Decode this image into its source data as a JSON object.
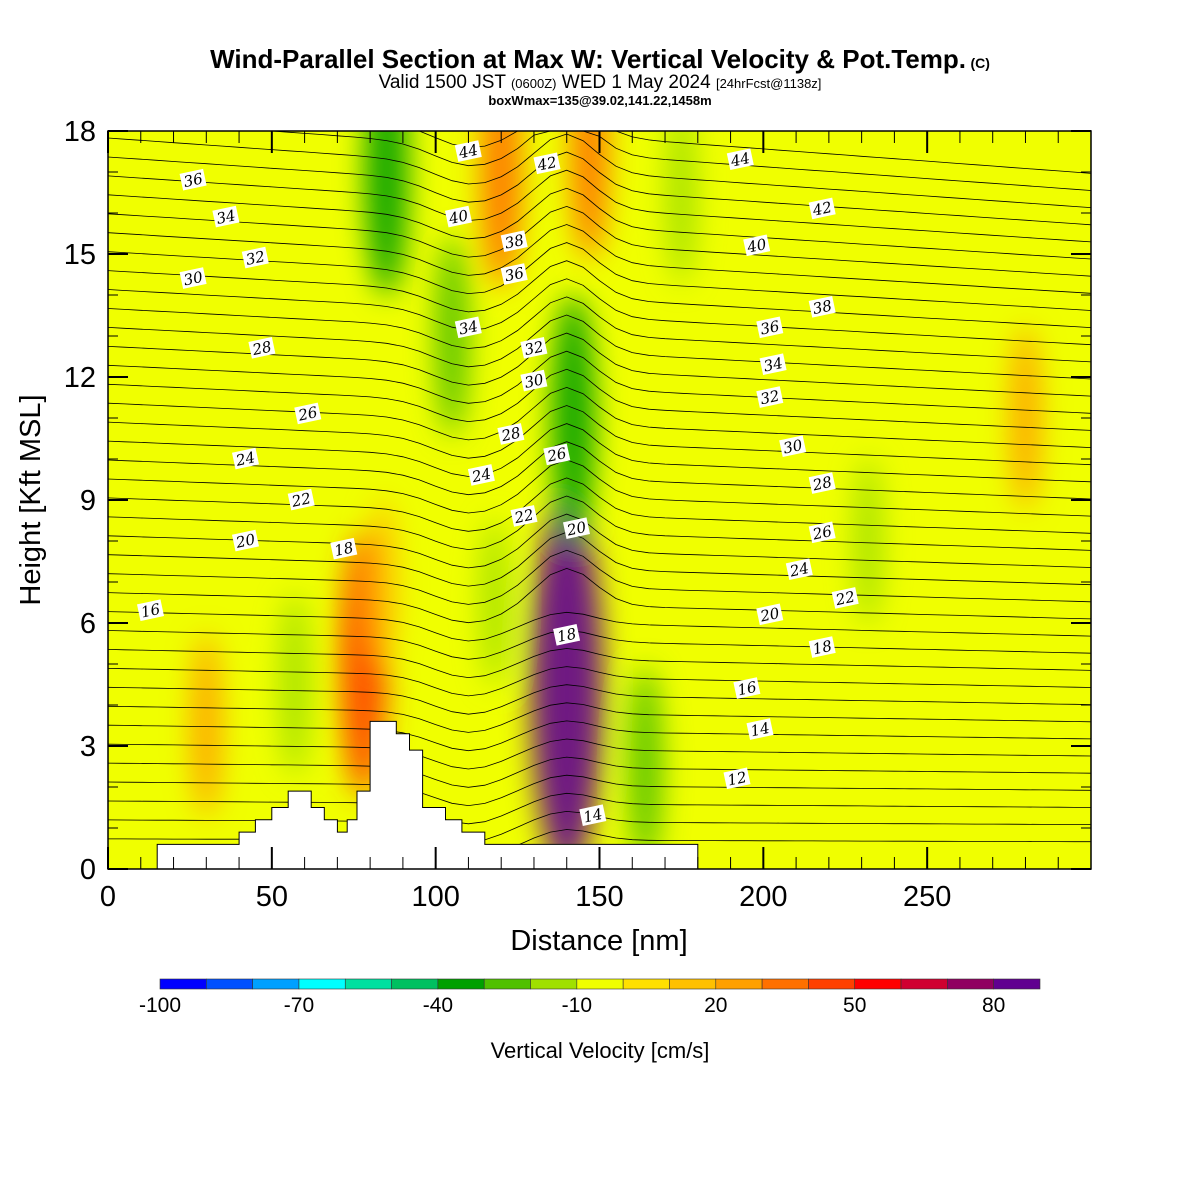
{
  "chart_data": {
    "type": "heatmap",
    "title_main": "Wind-Parallel Section at Max W: Vertical Velocity & Pot.Temp.",
    "title_mark": "(C)",
    "subtitle_a": "Valid 1500 JST",
    "subtitle_b": "(0600Z)",
    "subtitle_c": "WED 1 May 2024",
    "subtitle_d": "[24hrFcst@1138z]",
    "box_line": "boxWmax=135@39.02,141.22,1458m",
    "xlabel": "Distance [nm]",
    "ylabel": "Height [Kft MSL]",
    "xlim": [
      0,
      300
    ],
    "ylim": [
      0,
      18
    ],
    "x_ticks": [
      "0",
      "50",
      "100",
      "150",
      "200",
      "250"
    ],
    "x_tick_values": [
      0,
      50,
      100,
      150,
      200,
      250
    ],
    "y_ticks": [
      "0",
      "3",
      "6",
      "9",
      "12",
      "15",
      "18"
    ],
    "y_tick_values": [
      0,
      3,
      6,
      9,
      12,
      15,
      18
    ],
    "colorbar": {
      "label": "Vertical Velocity [cm/s]",
      "min": -100,
      "max": 90,
      "tick_labels": [
        "-100",
        "-70",
        "-40",
        "-10",
        "20",
        "50",
        "80"
      ],
      "tick_values": [
        -100,
        -70,
        -40,
        -10,
        20,
        50,
        80
      ],
      "colors": [
        "#0000ff",
        "#0050ff",
        "#00a0ff",
        "#00ffff",
        "#00e0a0",
        "#00c060",
        "#00a000",
        "#50c000",
        "#a0e000",
        "#f0ff00",
        "#ffe000",
        "#ffc000",
        "#ffa000",
        "#ff7000",
        "#ff4000",
        "#ff0000",
        "#d00030",
        "#900060",
        "#600090"
      ]
    },
    "terrain_profile": [
      [
        0,
        0
      ],
      [
        15,
        0
      ],
      [
        15,
        0.6
      ],
      [
        40,
        0.6
      ],
      [
        40,
        0.9
      ],
      [
        45,
        0.9
      ],
      [
        45,
        1.2
      ],
      [
        50,
        1.2
      ],
      [
        50,
        1.5
      ],
      [
        55,
        1.5
      ],
      [
        55,
        1.9
      ],
      [
        62,
        1.9
      ],
      [
        62,
        1.5
      ],
      [
        66,
        1.5
      ],
      [
        66,
        1.2
      ],
      [
        70,
        1.2
      ],
      [
        70,
        0.9
      ],
      [
        73,
        0.9
      ],
      [
        73,
        1.2
      ],
      [
        76,
        1.2
      ],
      [
        76,
        1.9
      ],
      [
        80,
        1.9
      ],
      [
        80,
        3.6
      ],
      [
        88,
        3.6
      ],
      [
        88,
        3.3
      ],
      [
        92,
        3.3
      ],
      [
        92,
        2.9
      ],
      [
        96,
        2.9
      ],
      [
        96,
        1.5
      ],
      [
        103,
        1.5
      ],
      [
        103,
        1.2
      ],
      [
        108,
        1.2
      ],
      [
        108,
        0.9
      ],
      [
        115,
        0.9
      ],
      [
        115,
        0.6
      ],
      [
        180,
        0.6
      ],
      [
        180,
        0
      ],
      [
        300,
        0
      ]
    ],
    "w_features": [
      {
        "x": 140,
        "y": 4.5,
        "value": 80
      },
      {
        "x": 78,
        "y": 5.0,
        "value": 45
      },
      {
        "x": 120,
        "y": 17.0,
        "value": 35
      },
      {
        "x": 147,
        "y": 17.5,
        "value": 30
      },
      {
        "x": 30,
        "y": 3.5,
        "value": 20
      },
      {
        "x": 84,
        "y": 7.0,
        "value": 15
      },
      {
        "x": 280,
        "y": 11.0,
        "value": 20
      },
      {
        "x": 85,
        "y": 17.0,
        "value": -40
      },
      {
        "x": 142,
        "y": 11.0,
        "value": -40
      },
      {
        "x": 105,
        "y": 13.0,
        "value": -25
      },
      {
        "x": 175,
        "y": 16.5,
        "value": -20
      },
      {
        "x": 57,
        "y": 4.5,
        "value": -20
      },
      {
        "x": 164,
        "y": 2.5,
        "value": -25
      },
      {
        "x": 118,
        "y": 6.5,
        "value": -15
      },
      {
        "x": 232,
        "y": 8.0,
        "value": -15
      }
    ],
    "theta_contour_labels": [
      {
        "value": "44",
        "x": 110,
        "y": 17.5
      },
      {
        "value": "42",
        "x": 134,
        "y": 17.2
      },
      {
        "value": "44",
        "x": 193,
        "y": 17.3
      },
      {
        "value": "36",
        "x": 26,
        "y": 16.8
      },
      {
        "value": "42",
        "x": 218,
        "y": 16.1
      },
      {
        "value": "40",
        "x": 107,
        "y": 15.9
      },
      {
        "value": "34",
        "x": 36,
        "y": 15.9
      },
      {
        "value": "38",
        "x": 124,
        "y": 15.3
      },
      {
        "value": "40",
        "x": 198,
        "y": 15.2
      },
      {
        "value": "32",
        "x": 45,
        "y": 14.9
      },
      {
        "value": "36",
        "x": 124,
        "y": 14.5
      },
      {
        "value": "30",
        "x": 26,
        "y": 14.4
      },
      {
        "value": "38",
        "x": 218,
        "y": 13.7
      },
      {
        "value": "34",
        "x": 110,
        "y": 13.2
      },
      {
        "value": "36",
        "x": 202,
        "y": 13.2
      },
      {
        "value": "32",
        "x": 130,
        "y": 12.7
      },
      {
        "value": "28",
        "x": 47,
        "y": 12.7
      },
      {
        "value": "34",
        "x": 203,
        "y": 12.3
      },
      {
        "value": "30",
        "x": 130,
        "y": 11.9
      },
      {
        "value": "32",
        "x": 202,
        "y": 11.5
      },
      {
        "value": "26",
        "x": 61,
        "y": 11.1
      },
      {
        "value": "28",
        "x": 123,
        "y": 10.6
      },
      {
        "value": "30",
        "x": 209,
        "y": 10.3
      },
      {
        "value": "24",
        "x": 42,
        "y": 10.0
      },
      {
        "value": "26",
        "x": 137,
        "y": 10.1
      },
      {
        "value": "24",
        "x": 114,
        "y": 9.6
      },
      {
        "value": "28",
        "x": 218,
        "y": 9.4
      },
      {
        "value": "22",
        "x": 59,
        "y": 9.0
      },
      {
        "value": "22",
        "x": 127,
        "y": 8.6
      },
      {
        "value": "20",
        "x": 143,
        "y": 8.3
      },
      {
        "value": "26",
        "x": 218,
        "y": 8.2
      },
      {
        "value": "20",
        "x": 42,
        "y": 8.0
      },
      {
        "value": "18",
        "x": 72,
        "y": 7.8
      },
      {
        "value": "24",
        "x": 211,
        "y": 7.3
      },
      {
        "value": "22",
        "x": 225,
        "y": 6.6
      },
      {
        "value": "16",
        "x": 13,
        "y": 6.3
      },
      {
        "value": "20",
        "x": 202,
        "y": 6.2
      },
      {
        "value": "18",
        "x": 140,
        "y": 5.7
      },
      {
        "value": "18",
        "x": 218,
        "y": 5.4
      },
      {
        "value": "16",
        "x": 195,
        "y": 4.4
      },
      {
        "value": "14",
        "x": 199,
        "y": 3.4
      },
      {
        "value": "12",
        "x": 192,
        "y": 2.2
      },
      {
        "value": "14",
        "x": 148,
        "y": 1.3
      }
    ]
  }
}
